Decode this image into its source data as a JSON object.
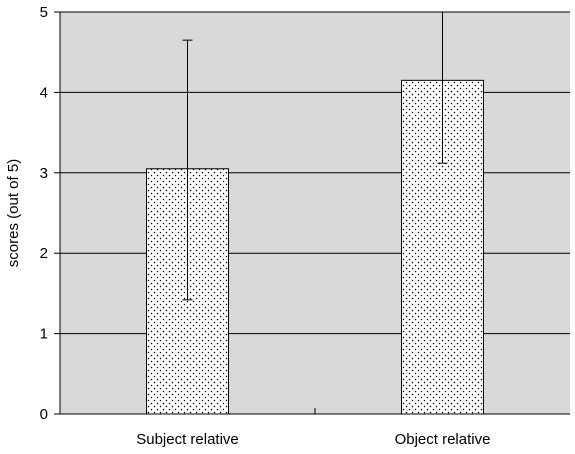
{
  "chart_data": {
    "type": "bar",
    "title": "",
    "xlabel": "",
    "ylabel": "scores (out of 5)",
    "ylim": [
      0,
      5
    ],
    "yticks": [
      "0",
      "1",
      "2",
      "3",
      "4",
      "5"
    ],
    "categories": [
      "Subject relative",
      "Object relative"
    ],
    "values": [
      3.05,
      4.15
    ],
    "error_bars": [
      {
        "low": 1.42,
        "high": 4.65
      },
      {
        "low": 3.12,
        "high": 5.0
      }
    ],
    "grid": "horizontal",
    "plot_background": "#d9d9d9",
    "bar_fill": "dotted pattern",
    "bar_color": "#ffffff",
    "line_color": "#000000",
    "legend": "none"
  }
}
